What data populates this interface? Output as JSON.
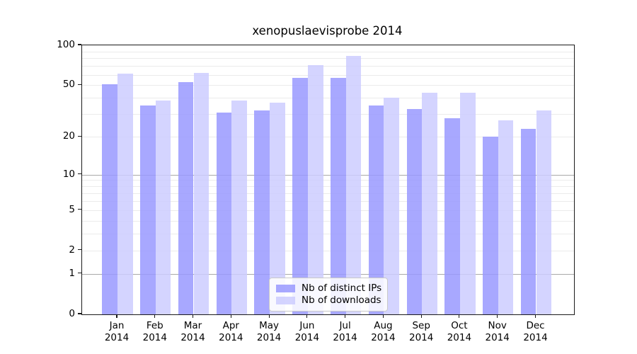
{
  "chart_data": {
    "type": "bar",
    "title": "xenopuslaevisprobe 2014",
    "year_label": "2014",
    "categories": [
      "Jan",
      "Feb",
      "Mar",
      "Apr",
      "May",
      "Jun",
      "Jul",
      "Aug",
      "Sep",
      "Oct",
      "Nov",
      "Dec"
    ],
    "series": [
      {
        "name": "Nb of distinct IPs",
        "color": "rgba(153,153,255,0.85)",
        "values": [
          51,
          35,
          53,
          31,
          32,
          57,
          57,
          35,
          33,
          28,
          20,
          23
        ]
      },
      {
        "name": "Nb of downloads",
        "color": "rgba(204,204,255,0.85)",
        "values": [
          61,
          38,
          62,
          38,
          37,
          71,
          83,
          40,
          44,
          44,
          27,
          32
        ]
      }
    ],
    "yscale": "log(value+1)",
    "ylim": [
      0,
      100
    ],
    "ytick_values": [
      0,
      1,
      2,
      5,
      10,
      20,
      50,
      100
    ],
    "ytick_labels": [
      "0",
      "1",
      "2",
      "5",
      "10",
      "20",
      "50",
      "100"
    ],
    "minor_gridline_values": [
      2,
      3,
      4,
      5,
      6,
      7,
      8,
      9,
      20,
      30,
      40,
      50,
      60,
      70,
      80,
      90
    ],
    "major_gridline_values": [
      1,
      10
    ],
    "grid": "horizontal",
    "legend_position": "bottom-center",
    "colors": {
      "distinct_ips": "rgba(153,153,255,0.85)",
      "downloads": "rgba(204,204,255,0.85)",
      "minor_grid": "#ebebeb",
      "major_grid": "#a8a8a8",
      "spine": "#1a1a1a"
    }
  }
}
